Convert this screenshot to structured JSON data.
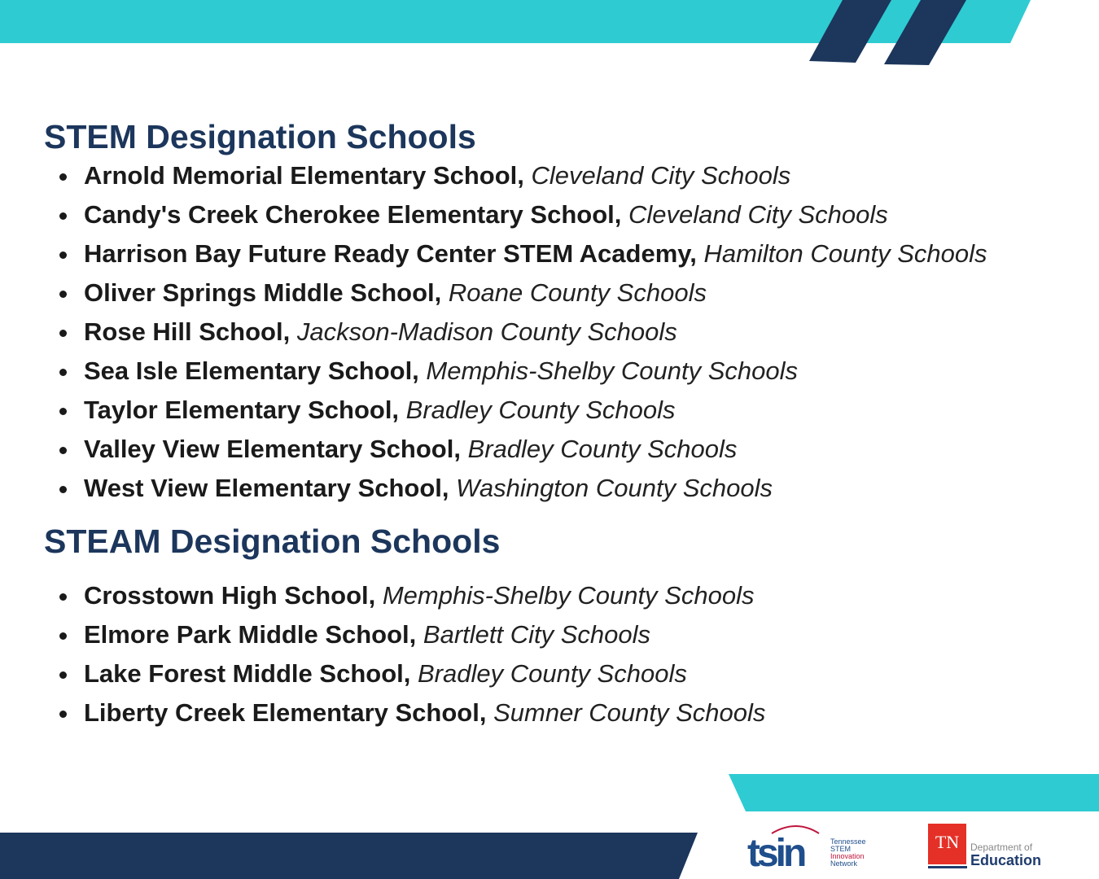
{
  "colors": {
    "teal": "#2ecbd2",
    "navy": "#1c365c",
    "tn_red": "#e53027"
  },
  "stem": {
    "heading": "STEM Designation Schools",
    "items": [
      {
        "name": "Arnold Memorial Elementary School,",
        "district": "Cleveland City Schools"
      },
      {
        "name": "Candy's Creek Cherokee Elementary School,",
        "district": "Cleveland City Schools"
      },
      {
        "name": "Harrison Bay Future Ready Center STEM Academy,",
        "district": "Hamilton County Schools"
      },
      {
        "name": "Oliver Springs Middle School,",
        "district": "Roane County Schools"
      },
      {
        "name": "Rose Hill School,",
        "district": "Jackson-Madison County Schools"
      },
      {
        "name": "Sea Isle Elementary School,",
        "district": "Memphis-Shelby County Schools"
      },
      {
        "name": "Taylor Elementary School,",
        "district": "Bradley County Schools"
      },
      {
        "name": "Valley View Elementary School,",
        "district": "Bradley County Schools"
      },
      {
        "name": "West View Elementary School,",
        "district": "Washington County Schools"
      }
    ]
  },
  "steam": {
    "heading": "STEAM Designation Schools",
    "items": [
      {
        "name": "Crosstown High School,",
        "district": "Memphis-Shelby County Schools"
      },
      {
        "name": "Elmore Park Middle School,",
        "district": "Bartlett City Schools"
      },
      {
        "name": "Lake Forest Middle School,",
        "district": "Bradley County Schools"
      },
      {
        "name": "Liberty Creek Elementary School,",
        "district": "Sumner County Schools"
      }
    ]
  },
  "logos": {
    "tsin": {
      "mark": "tsin",
      "line1": "Tennessee",
      "line2": "STEM",
      "line3": "Innovation",
      "line4": "Network"
    },
    "tdoe": {
      "mark": "TN",
      "line1": "Department of",
      "line2": "Education"
    }
  }
}
